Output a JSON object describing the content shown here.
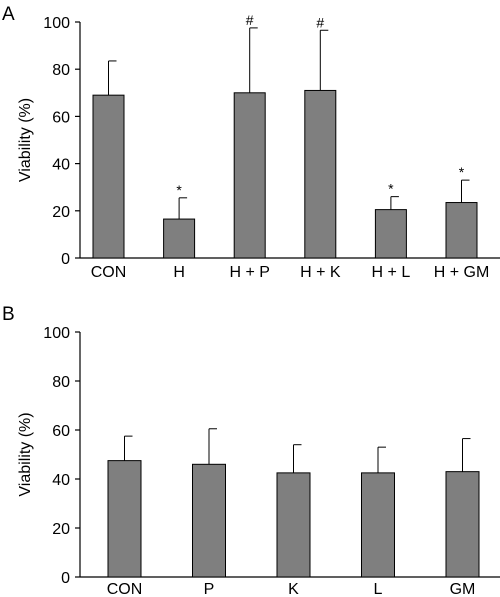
{
  "chart_data": [
    {
      "panel_label": "A",
      "type": "bar",
      "ylabel": "Viability (%)",
      "ylim": [
        0,
        100
      ],
      "yticks": [
        "0",
        "20",
        "40",
        "60",
        "80",
        "100"
      ],
      "categories": [
        "CON",
        "H",
        "H + P",
        "H + K",
        "H + L",
        "H + GM"
      ],
      "values": [
        69,
        16.5,
        70,
        71,
        20.5,
        23.5
      ],
      "errors": [
        14.5,
        9,
        27.5,
        25.5,
        5.5,
        9.5
      ],
      "annotations": [
        "",
        "*",
        "#",
        "#",
        "*",
        "*"
      ],
      "bar_color": "#7f7f7f",
      "grid": false
    },
    {
      "panel_label": "B",
      "type": "bar",
      "ylabel": "Viability (%)",
      "ylim": [
        0,
        100
      ],
      "yticks": [
        "0",
        "20",
        "40",
        "60",
        "80",
        "100"
      ],
      "categories": [
        "CON",
        "P",
        "K",
        "L",
        "GM"
      ],
      "values": [
        47.5,
        46,
        42.5,
        42.5,
        43
      ],
      "errors": [
        10,
        14.5,
        11.5,
        10.5,
        13.5
      ],
      "annotations": [
        "",
        "",
        "",
        "",
        ""
      ],
      "bar_color": "#7f7f7f",
      "grid": false
    }
  ]
}
